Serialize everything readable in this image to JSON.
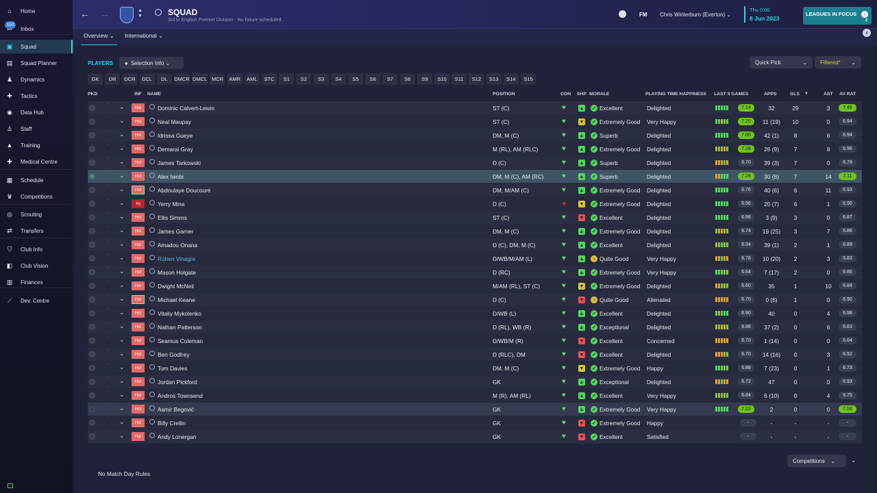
{
  "sidebar": {
    "items": [
      {
        "label": "Home",
        "icon": "home-icon"
      },
      {
        "label": "Inbox",
        "icon": "inbox-icon",
        "badge": "150"
      },
      {
        "label": "Squad",
        "icon": "shirt-icon",
        "active": true
      },
      {
        "label": "Squad Planner",
        "icon": "planner-icon"
      },
      {
        "label": "Dynamics",
        "icon": "dynamics-icon"
      },
      {
        "label": "Tactics",
        "icon": "tactics-icon"
      },
      {
        "label": "Data Hub",
        "icon": "data-hub-icon"
      },
      {
        "label": "Staff",
        "icon": "staff-icon"
      },
      {
        "label": "Training",
        "icon": "training-icon"
      },
      {
        "label": "Medical Centre",
        "icon": "medical-icon"
      },
      {
        "label": "Schedule",
        "icon": "calendar-icon"
      },
      {
        "label": "Competitions",
        "icon": "trophy-icon"
      },
      {
        "label": "Scouting",
        "icon": "scouting-icon"
      },
      {
        "label": "Transfers",
        "icon": "transfers-icon"
      },
      {
        "label": "Club Info",
        "icon": "shield-icon"
      },
      {
        "label": "Club Vision",
        "icon": "vision-icon"
      },
      {
        "label": "Finances",
        "icon": "finances-icon"
      },
      {
        "label": "Dev. Centre",
        "icon": "dev-centre-icon"
      }
    ]
  },
  "header": {
    "title": "SQUAD",
    "subtitle": "3rd in English Premier Division - No fixture scheduled.",
    "fm": "FM",
    "manager": "Chris Winterburn (Everton)",
    "date_day": "Thu 0:00",
    "date_full": "8 Jun 2023",
    "leagues_in_focus": "LEAGUES IN FOCUS",
    "leagues_count": "2",
    "notif_count": "4",
    "tabs": [
      "Overview",
      "International"
    ]
  },
  "toolbar": {
    "players_label": "PLAYERS",
    "selection_info": "Selection Info",
    "quick_pick": "Quick Pick",
    "filtered": "Filtered*",
    "positions": [
      "GK",
      "DR",
      "DCR",
      "DCL",
      "DL",
      "DMCR",
      "DMCL",
      "MCR",
      "AMR",
      "AML",
      "STC",
      "S1",
      "S2",
      "S3",
      "S4",
      "S5",
      "S6",
      "S7",
      "S8",
      "S9",
      "S10",
      "S11",
      "S12",
      "S13",
      "S14",
      "S15"
    ]
  },
  "table": {
    "headers": {
      "pkd": "PKD",
      "inf": "INF",
      "name": "NAME",
      "position": "POSITION",
      "con": "CON",
      "shp": "SHP",
      "morale": "MORALE",
      "pth": "PLAYING TIME HAPPINESS",
      "l5": "LAST 5 GAMES",
      "apps": "APPS",
      "gls": "GLS",
      "ast": "AST",
      "avr": "AV RAT"
    },
    "rows": [
      {
        "name": "Dominic Calvert-Lewin",
        "inf": "Hol",
        "position": "ST (C)",
        "con": "fit",
        "shp": "good",
        "morale": "Excellent",
        "pth": "Delighted",
        "l5": [
          "g",
          "g",
          "g",
          "g",
          "g"
        ],
        "rat": "7.14",
        "rat_c": "hi",
        "apps": "32",
        "gls": "29",
        "ast": "3",
        "avr": "7.46",
        "avr_c": "hi"
      },
      {
        "name": "Neal Maupay",
        "inf": "Hol",
        "position": "ST (C)",
        "con": "fit",
        "shp": "ok",
        "morale": "Extremely Good",
        "pth": "Very Happy",
        "l5": [
          "g",
          "g",
          "o",
          "g",
          "g"
        ],
        "rat": "7.20",
        "rat_c": "hi",
        "apps": "11 (19)",
        "gls": "10",
        "ast": "0",
        "avr": "6.94",
        "avr_c": "n"
      },
      {
        "name": "Idrissa Gueye",
        "inf": "Hol",
        "position": "DM, M (C)",
        "con": "fit",
        "shp": "good",
        "morale": "Superb",
        "pth": "Delighted",
        "l5": [
          "g",
          "g",
          "g",
          "g",
          "g"
        ],
        "rat": "7.00",
        "rat_c": "hi",
        "apps": "42 (1)",
        "gls": "8",
        "ast": "6",
        "avr": "6.94",
        "avr_c": "n"
      },
      {
        "name": "Demarai Gray",
        "inf": "Hol",
        "position": "M (RL), AM (RLC)",
        "con": "fit",
        "shp": "good",
        "morale": "Extremely Good",
        "pth": "Delighted",
        "l5": [
          "o",
          "g",
          "o",
          "o",
          "g"
        ],
        "rat": "7.26",
        "rat_c": "hi",
        "apps": "26 (9)",
        "gls": "7",
        "ast": "8",
        "avr": "6.96",
        "avr_c": "n"
      },
      {
        "name": "James Tarkowski",
        "inf": "Hol",
        "position": "D (C)",
        "con": "fit",
        "shp": "good",
        "morale": "Superb",
        "pth": "Delighted",
        "l5": [
          "o",
          "o",
          "o",
          "g",
          "o"
        ],
        "rat": "6.70",
        "rat_c": "n",
        "apps": "39 (3)",
        "gls": "7",
        "ast": "0",
        "avr": "6.79",
        "avr_c": "n"
      },
      {
        "name": "Alex Iwobi",
        "inf": "Hol",
        "position": "DM, M (C), AM (RC)",
        "con": "fit",
        "shp": "good",
        "morale": "Superb",
        "pth": "Delighted",
        "l5": [
          "o",
          "o",
          "g",
          "g",
          "g"
        ],
        "rat": "7.28",
        "rat_c": "hi",
        "apps": "30 (8)",
        "gls": "7",
        "ast": "14",
        "avr": "7.11",
        "avr_c": "hi",
        "sel": true
      },
      {
        "name": "Abdoulaye Doucouré",
        "inf": "Hol",
        "position": "DM, M/AM (C)",
        "con": "fit",
        "shp": "good",
        "morale": "Extremely Good",
        "pth": "Delighted",
        "l5": [
          "g",
          "g",
          "g",
          "g",
          "g"
        ],
        "rat": "6.76",
        "rat_c": "n",
        "apps": "40 (6)",
        "gls": "6",
        "ast": "11",
        "avr": "6.93",
        "avr_c": "n",
        "bord": true
      },
      {
        "name": "Yerry Mina",
        "inf": "Inj",
        "position": "D (C)",
        "con": "inj",
        "shp": "ok",
        "morale": "Extremely Good",
        "pth": "Delighted",
        "l5": [
          "g",
          "g",
          "g",
          "g",
          "g"
        ],
        "rat": "6.96",
        "rat_c": "n",
        "apps": "20 (7)",
        "gls": "6",
        "ast": "1",
        "avr": "6.90",
        "avr_c": "n"
      },
      {
        "name": "Ellis Simms",
        "inf": "Hol",
        "position": "ST (C)",
        "con": "fit",
        "shp": "bad",
        "morale": "Excellent",
        "pth": "Delighted",
        "l5": [
          "g",
          "g",
          "g",
          "g",
          "g"
        ],
        "rat": "6.96",
        "rat_c": "n",
        "apps": "3 (9)",
        "gls": "3",
        "ast": "0",
        "avr": "6.87",
        "avr_c": "n"
      },
      {
        "name": "James Garner",
        "inf": "Hol",
        "position": "DM, M (C)",
        "con": "fit",
        "shp": "good",
        "morale": "Extremely Good",
        "pth": "Delighted",
        "l5": [
          "g",
          "o",
          "o",
          "o",
          "g"
        ],
        "rat": "6.74",
        "rat_c": "n",
        "apps": "19 (25)",
        "gls": "3",
        "ast": "7",
        "avr": "6.86",
        "avr_c": "n"
      },
      {
        "name": "Amadou Onana",
        "inf": "Hol",
        "position": "D (C), DM, M (C)",
        "con": "fit",
        "shp": "good",
        "morale": "Excellent",
        "pth": "Delighted",
        "l5": [
          "o",
          "g",
          "g",
          "o",
          "g"
        ],
        "rat": "6.94",
        "rat_c": "n",
        "apps": "39 (1)",
        "gls": "2",
        "ast": "1",
        "avr": "6.89",
        "avr_c": "n"
      },
      {
        "name": "Rúben Vinagre",
        "inf": "Hol",
        "position": "D/WB/M/AM (L)",
        "con": "fit",
        "shp": "good",
        "morale": "Quite Good",
        "pth": "Very Happy",
        "l5": [
          "o",
          "o",
          "g",
          "o",
          "o"
        ],
        "rat": "6.78",
        "rat_c": "n",
        "apps": "10 (20)",
        "gls": "2",
        "ast": "3",
        "avr": "6.83",
        "avr_c": "n",
        "link": true
      },
      {
        "name": "Mason Holgate",
        "inf": "Hol",
        "position": "D (RC)",
        "con": "fit",
        "shp": "good",
        "morale": "Extremely Good",
        "pth": "Very Happy",
        "l5": [
          "g",
          "g",
          "g",
          "o",
          "g"
        ],
        "rat": "6.64",
        "rat_c": "n",
        "apps": "7 (17)",
        "gls": "2",
        "ast": "0",
        "avr": "6.85",
        "avr_c": "n"
      },
      {
        "name": "Dwight McNeil",
        "inf": "Hol",
        "position": "M/AM (RL), ST (C)",
        "con": "fit",
        "shp": "ok",
        "morale": "Extremely Good",
        "pth": "Delighted",
        "l5": [
          "o",
          "o",
          "g",
          "o",
          "g"
        ],
        "rat": "6.60",
        "rat_c": "n",
        "apps": "35",
        "gls": "1",
        "ast": "10",
        "avr": "6.84",
        "avr_c": "n"
      },
      {
        "name": "Michael Keane",
        "inf": "Hol",
        "position": "D (C)",
        "con": "fit",
        "shp": "bad",
        "morale": "Quite Good",
        "pth": "Alienated",
        "l5": [
          "o",
          "o",
          "o",
          "o",
          "o"
        ],
        "rat": "6.70",
        "rat_c": "n",
        "apps": "0 (6)",
        "gls": "1",
        "ast": "0",
        "avr": "6.90",
        "avr_c": "n",
        "bord": true
      },
      {
        "name": "Vitaliy Mykolenko",
        "inf": "Hol",
        "position": "D/WB (L)",
        "con": "fit",
        "shp": "good",
        "morale": "Excellent",
        "pth": "Delighted",
        "l5": [
          "g",
          "o",
          "g",
          "g",
          "g"
        ],
        "rat": "6.90",
        "rat_c": "n",
        "apps": "40",
        "gls": "0",
        "ast": "4",
        "avr": "6.98",
        "avr_c": "n"
      },
      {
        "name": "Nathan Patterson",
        "inf": "Hol",
        "position": "D (RL), WB (R)",
        "con": "fit",
        "shp": "good",
        "morale": "Exceptional",
        "pth": "Delighted",
        "l5": [
          "o",
          "g",
          "o",
          "o",
          "g"
        ],
        "rat": "6.86",
        "rat_c": "n",
        "apps": "37 (2)",
        "gls": "0",
        "ast": "6",
        "avr": "6.83",
        "avr_c": "n"
      },
      {
        "name": "Seamus Coleman",
        "inf": "Hol",
        "position": "D/WB/M (R)",
        "con": "fit",
        "shp": "bad",
        "morale": "Excellent",
        "pth": "Concerned",
        "l5": [
          "o",
          "o",
          "o",
          "o",
          "o"
        ],
        "rat": "6.70",
        "rat_c": "n",
        "apps": "1 (14)",
        "gls": "0",
        "ast": "0",
        "avr": "6.64",
        "avr_c": "n"
      },
      {
        "name": "Ben Godfrey",
        "inf": "Hol",
        "position": "D (RLC), DM",
        "con": "fit",
        "shp": "bad",
        "morale": "Excellent",
        "pth": "Delighted",
        "l5": [
          "o",
          "o",
          "o",
          "o",
          "g"
        ],
        "rat": "6.70",
        "rat_c": "n",
        "apps": "14 (16)",
        "gls": "0",
        "ast": "3",
        "avr": "6.92",
        "avr_c": "n"
      },
      {
        "name": "Tom Davies",
        "inf": "Hol",
        "position": "DM, M (C)",
        "con": "fit",
        "shp": "ok",
        "morale": "Extremely Good",
        "pth": "Happy",
        "l5": [
          "g",
          "g",
          "g",
          "o",
          "g"
        ],
        "rat": "6.88",
        "rat_c": "n",
        "apps": "7 (23)",
        "gls": "0",
        "ast": "1",
        "avr": "6.73",
        "avr_c": "n"
      },
      {
        "name": "Jordan Pickford",
        "inf": "Hol",
        "position": "GK",
        "con": "fit",
        "shp": "good",
        "morale": "Exceptional",
        "pth": "Delighted",
        "l5": [
          "o",
          "o",
          "g",
          "o",
          "o"
        ],
        "rat": "6.72",
        "rat_c": "n",
        "apps": "47",
        "gls": "0",
        "ast": "0",
        "avr": "6.93",
        "avr_c": "n"
      },
      {
        "name": "Andros Townsend",
        "inf": "Hol",
        "position": "M (R), AM (RL)",
        "con": "fit",
        "shp": "good",
        "morale": "Excellent",
        "pth": "Very Happy",
        "l5": [
          "g",
          "o",
          "g",
          "o",
          "g"
        ],
        "rat": "6.84",
        "rat_c": "n",
        "apps": "6 (10)",
        "gls": "0",
        "ast": "4",
        "avr": "6.75",
        "avr_c": "n"
      },
      {
        "name": "Asmir Begović",
        "inf": "Hol",
        "position": "GK",
        "con": "fit",
        "shp": "good",
        "morale": "Extremely Good",
        "pth": "Very Happy",
        "l5": [
          "g",
          "g",
          "g",
          "g",
          "g"
        ],
        "rat": "7.22",
        "rat_c": "hi",
        "apps": "2",
        "gls": "0",
        "ast": "0",
        "avr": "7.56",
        "avr_c": "hi",
        "hl": true
      },
      {
        "name": "Billy Crellin",
        "inf": "Hol",
        "position": "GK",
        "con": "fit",
        "shp": "bad",
        "morale": "Extremely Good",
        "pth": "Happy",
        "l5": [],
        "rat": "-",
        "rat_c": "n",
        "apps": "-",
        "gls": "-",
        "ast": "-",
        "avr": "-",
        "avr_c": "n"
      },
      {
        "name": "Andy Lonergan",
        "inf": "Hol",
        "position": "GK",
        "con": "fit",
        "shp": "bad",
        "morale": "Excellent",
        "pth": "Satisfied",
        "l5": [],
        "rat": "-",
        "rat_c": "n",
        "apps": "-",
        "gls": "-",
        "ast": "-",
        "avr": "-",
        "avr_c": "n"
      }
    ]
  },
  "footer": {
    "competitions": "Competitions",
    "no_rules": "No Match Day Rules"
  },
  "colors": {
    "accent": "#3ec8f2",
    "good": "#52e06a",
    "warn": "#e0c040",
    "bad": "#e05050",
    "rating_hi": "#6fc21e"
  }
}
